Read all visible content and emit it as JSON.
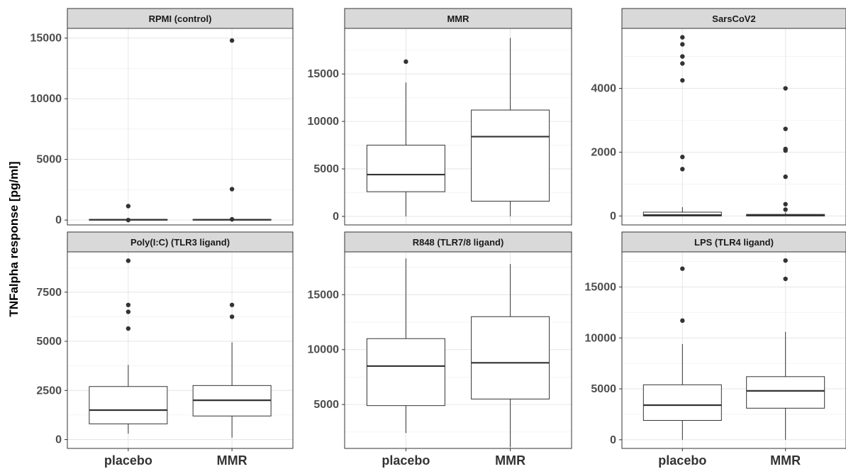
{
  "y_axis_title": "TNFalpha response [pg/ml]",
  "chart_data": [
    {
      "type": "box",
      "title": "RPMI (control)",
      "categories": [
        "placebo",
        "MMR"
      ],
      "y_ticks": [
        0,
        5000,
        10000,
        15000
      ],
      "ylim": [
        -400,
        15800
      ],
      "boxes": [
        {
          "category": "placebo",
          "whisker_low": 0,
          "q1": 0,
          "median": 20,
          "q3": 60,
          "whisker_high": 120,
          "outliers": [
            1150,
            0
          ]
        },
        {
          "category": "MMR",
          "whisker_low": 0,
          "q1": 0,
          "median": 20,
          "q3": 60,
          "whisker_high": 120,
          "outliers": [
            14800,
            2550,
            60
          ]
        }
      ]
    },
    {
      "type": "box",
      "title": "MMR",
      "categories": [
        "placebo",
        "MMR"
      ],
      "y_ticks": [
        0,
        5000,
        10000,
        15000
      ],
      "ylim": [
        -900,
        19800
      ],
      "boxes": [
        {
          "category": "placebo",
          "whisker_low": 0,
          "q1": 2600,
          "median": 4400,
          "q3": 7500,
          "whisker_high": 14100,
          "outliers": [
            16300
          ]
        },
        {
          "category": "MMR",
          "whisker_low": 0,
          "q1": 1600,
          "median": 8400,
          "q3": 11200,
          "whisker_high": 18800,
          "outliers": []
        }
      ]
    },
    {
      "type": "box",
      "title": "SarsCoV2",
      "categories": [
        "placebo",
        "MMR"
      ],
      "y_ticks": [
        0,
        2000,
        4000
      ],
      "ylim": [
        -280,
        5880
      ],
      "boxes": [
        {
          "category": "placebo",
          "whisker_low": 0,
          "q1": 0,
          "median": 30,
          "q3": 120,
          "whisker_high": 280,
          "outliers": [
            5600,
            5380,
            5000,
            4780,
            4250,
            1850,
            1470
          ]
        },
        {
          "category": "MMR",
          "whisker_low": 0,
          "q1": 0,
          "median": 20,
          "q3": 50,
          "whisker_high": 110,
          "outliers": [
            4000,
            2730,
            2100,
            2050,
            1230,
            370,
            200
          ]
        }
      ]
    },
    {
      "type": "box",
      "title": "Poly(I:C) (TLR3 ligand)",
      "categories": [
        "placebo",
        "MMR"
      ],
      "y_ticks": [
        0,
        2500,
        5000,
        7500
      ],
      "ylim": [
        -450,
        9550
      ],
      "boxes": [
        {
          "category": "placebo",
          "whisker_low": 300,
          "q1": 800,
          "median": 1500,
          "q3": 2700,
          "whisker_high": 3800,
          "outliers": [
            9100,
            6850,
            6500,
            5650
          ]
        },
        {
          "category": "MMR",
          "whisker_low": 100,
          "q1": 1200,
          "median": 2000,
          "q3": 2750,
          "whisker_high": 4950,
          "outliers": [
            6850,
            6250
          ]
        }
      ]
    },
    {
      "type": "box",
      "title": "R848 (TLR7/8 ligand)",
      "categories": [
        "placebo",
        "MMR"
      ],
      "y_ticks": [
        5000,
        10000,
        15000
      ],
      "ylim": [
        1000,
        18900
      ],
      "boxes": [
        {
          "category": "placebo",
          "whisker_low": 2400,
          "q1": 4900,
          "median": 8500,
          "q3": 11000,
          "whisker_high": 18300,
          "outliers": []
        },
        {
          "category": "MMR",
          "whisker_low": 1100,
          "q1": 5500,
          "median": 8800,
          "q3": 13000,
          "whisker_high": 17800,
          "outliers": []
        }
      ]
    },
    {
      "type": "box",
      "title": "LPS (TLR4 ligand)",
      "categories": [
        "placebo",
        "MMR"
      ],
      "y_ticks": [
        0,
        5000,
        10000,
        15000
      ],
      "ylim": [
        -850,
        18450
      ],
      "boxes": [
        {
          "category": "placebo",
          "whisker_low": 0,
          "q1": 1900,
          "median": 3400,
          "q3": 5400,
          "whisker_high": 9400,
          "outliers": [
            16800,
            11700
          ]
        },
        {
          "category": "MMR",
          "whisker_low": 0,
          "q1": 3100,
          "median": 4800,
          "q3": 6200,
          "whisker_high": 10600,
          "outliers": [
            17600,
            15800
          ]
        }
      ]
    }
  ]
}
